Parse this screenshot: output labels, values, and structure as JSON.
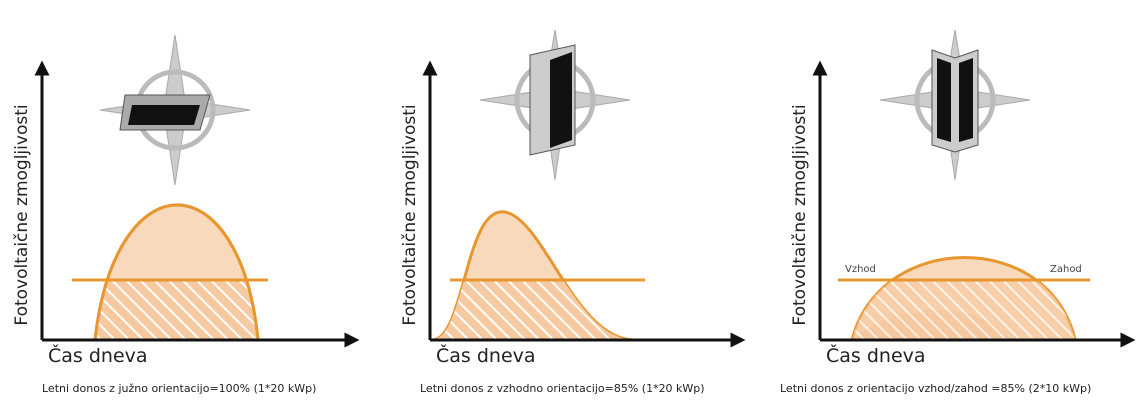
{
  "panels": [
    {
      "y_label": "Fotovoltaične zmogljivosti",
      "x_label": "Čas dneva",
      "caption": "Letni donos z južno orientacijo=100% (1*20 kWp)"
    },
    {
      "y_label": "Fotovoltaične zmogljivosti",
      "x_label": "Čas dneva",
      "caption": "Letni donos z vzhodno orientacijo=85% (1*20 kWp)"
    },
    {
      "y_label": "Fotovoltaične zmogljivosti",
      "x_label": "Čas dneva",
      "caption": "Letni donos z orientacijo vzhod/zahod =85% (2*10 kWp)",
      "annotations": [
        "Vzhod",
        "Zahod"
      ]
    }
  ]
}
